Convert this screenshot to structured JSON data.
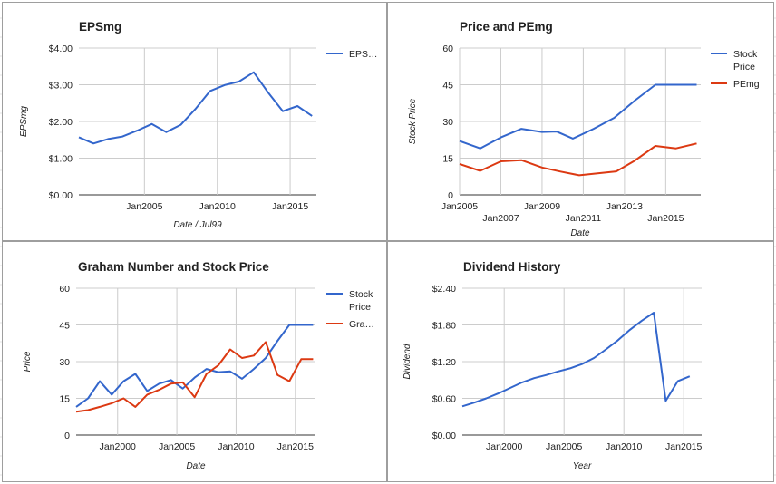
{
  "colors": {
    "blue": "#3366cc",
    "red": "#dc3912",
    "grid": "#cccccc",
    "border": "#9e9e9e"
  },
  "chart_data": [
    {
      "type": "line",
      "title": "EPSmg",
      "xlabel": "Date / Jul99",
      "ylabel": "EPSmg",
      "xlim": [
        2000.5,
        2016.8
      ],
      "ylim": [
        0,
        4
      ],
      "yticks": [
        "$0.00",
        "$1.00",
        "$2.00",
        "$3.00",
        "$4.00"
      ],
      "xticks": [
        {
          "label": "Jan2005",
          "x": 2005
        },
        {
          "label": "Jan2010",
          "x": 2010
        },
        {
          "label": "Jan2015",
          "x": 2015
        }
      ],
      "grid": true,
      "legend_position": "right",
      "series": [
        {
          "name": "EPS…",
          "color": "#3366cc",
          "x": [
            2000.5,
            2001.5,
            2002.5,
            2003.5,
            2004.5,
            2005.5,
            2006.5,
            2007.5,
            2008.5,
            2009.5,
            2010.5,
            2011.5,
            2012.5,
            2013.5,
            2014.5,
            2015.5,
            2016.5
          ],
          "y": [
            1.57,
            1.4,
            1.52,
            1.59,
            1.75,
            1.93,
            1.71,
            1.91,
            2.34,
            2.83,
            2.99,
            3.09,
            3.34,
            2.78,
            2.28,
            2.42,
            2.15
          ]
        }
      ]
    },
    {
      "type": "line",
      "title": "Price and PEmg",
      "xlabel": "Date",
      "ylabel": "Stock Price",
      "xlim": [
        2005,
        2016.7
      ],
      "ylim": [
        0,
        60
      ],
      "yticks": [
        "0",
        "15",
        "30",
        "45",
        "60"
      ],
      "xticks": [
        {
          "label": "Jan2005",
          "x": 2005,
          "row": 1
        },
        {
          "label": "Jan2007",
          "x": 2007,
          "row": 2
        },
        {
          "label": "Jan2009",
          "x": 2009,
          "row": 1
        },
        {
          "label": "Jan2011",
          "x": 2011,
          "row": 2
        },
        {
          "label": "Jan2013",
          "x": 2013,
          "row": 1
        },
        {
          "label": "Jan2015",
          "x": 2015,
          "row": 2
        }
      ],
      "grid": true,
      "legend_position": "right",
      "series": [
        {
          "name": "Stock Price",
          "name_lines": [
            "Stock",
            "Price"
          ],
          "color": "#3366cc",
          "x": [
            2005,
            2006,
            2007,
            2008,
            2009,
            2009.7,
            2010.5,
            2011.5,
            2012.5,
            2013.5,
            2014.5,
            2015.2,
            2016.5
          ],
          "y": [
            22,
            19,
            23.5,
            27,
            25.7,
            25.9,
            23,
            27,
            31.5,
            38.5,
            45,
            45,
            45
          ]
        },
        {
          "name": "PEmg",
          "name_lines": [
            "PEmg"
          ],
          "color": "#dc3912",
          "x": [
            2005,
            2006,
            2007,
            2008,
            2009,
            2009.9,
            2010.8,
            2011.7,
            2012.6,
            2013.5,
            2014.5,
            2015.5,
            2016.5
          ],
          "y": [
            12.6,
            9.8,
            13.7,
            14.2,
            11.2,
            9.5,
            8,
            8.8,
            9.6,
            14,
            20,
            19,
            21
          ]
        }
      ]
    },
    {
      "type": "line",
      "title": "Graham Number and Stock Price",
      "xlabel": "Date",
      "ylabel": "Price",
      "xlim": [
        1996.5,
        2016.7
      ],
      "ylim": [
        0,
        60
      ],
      "yticks": [
        "0",
        "15",
        "30",
        "45",
        "60"
      ],
      "xticks": [
        {
          "label": "Jan2000",
          "x": 2000
        },
        {
          "label": "Jan2005",
          "x": 2005
        },
        {
          "label": "Jan2010",
          "x": 2010
        },
        {
          "label": "Jan2015",
          "x": 2015
        }
      ],
      "grid": true,
      "legend_position": "right",
      "series": [
        {
          "name": "Stock Price",
          "name_lines": [
            "Stock",
            "Price"
          ],
          "color": "#3366cc",
          "x": [
            1996.5,
            1997.5,
            1998.5,
            1999.5,
            2000.5,
            2001.5,
            2002.5,
            2003.5,
            2004.5,
            2005.5,
            2006.5,
            2007.5,
            2008.5,
            2009.5,
            2010.5,
            2011.5,
            2012.5,
            2013.5,
            2014.5,
            2015.5,
            2016.5
          ],
          "y": [
            11.5,
            15,
            22,
            16.5,
            22,
            25,
            18,
            21,
            22.5,
            19,
            23.5,
            27,
            25.7,
            26,
            23,
            27,
            31.5,
            38.5,
            45,
            45,
            45
          ]
        },
        {
          "name": "Gra…",
          "name_lines": [
            "Gra…"
          ],
          "color": "#dc3912",
          "x": [
            1996.5,
            1997.5,
            1998.5,
            1999.5,
            2000.5,
            2001.5,
            2002.5,
            2003.5,
            2004.5,
            2005.5,
            2006.5,
            2007.5,
            2008.5,
            2009.5,
            2010.5,
            2011.5,
            2012.5,
            2013.5,
            2014.5,
            2015.5,
            2016.5
          ],
          "y": [
            9.5,
            10.2,
            11.5,
            13,
            15,
            11.5,
            16.5,
            18.5,
            21,
            21.5,
            15.5,
            25,
            28.5,
            35,
            31.5,
            32.5,
            38,
            24.5,
            22,
            31,
            31
          ]
        }
      ]
    },
    {
      "type": "line",
      "title": "Dividend History",
      "xlabel": "Year",
      "ylabel": "Dividend",
      "xlim": [
        1996.5,
        2016.5
      ],
      "ylim": [
        0,
        2.4
      ],
      "yticks": [
        "$0.00",
        "$0.60",
        "$1.20",
        "$1.80",
        "$2.40"
      ],
      "xticks": [
        {
          "label": "Jan2000",
          "x": 2000
        },
        {
          "label": "Jan2005",
          "x": 2005
        },
        {
          "label": "Jan2010",
          "x": 2010
        },
        {
          "label": "Jan2015",
          "x": 2015
        }
      ],
      "grid": true,
      "legend_position": "none",
      "series": [
        {
          "name": "",
          "color": "#3366cc",
          "x": [
            1996.5,
            1997.5,
            1998.5,
            1999.5,
            2000.5,
            2001.5,
            2002.5,
            2003.5,
            2004.5,
            2005.5,
            2006.5,
            2007.5,
            2008.5,
            2009.5,
            2010.5,
            2011.5,
            2012.5,
            2013.5,
            2014.5,
            2015.5
          ],
          "y": [
            0.47,
            0.53,
            0.6,
            0.68,
            0.77,
            0.86,
            0.93,
            0.98,
            1.04,
            1.09,
            1.16,
            1.26,
            1.4,
            1.55,
            1.72,
            1.87,
            2.0,
            0.56,
            0.88,
            0.96
          ]
        }
      ]
    }
  ]
}
